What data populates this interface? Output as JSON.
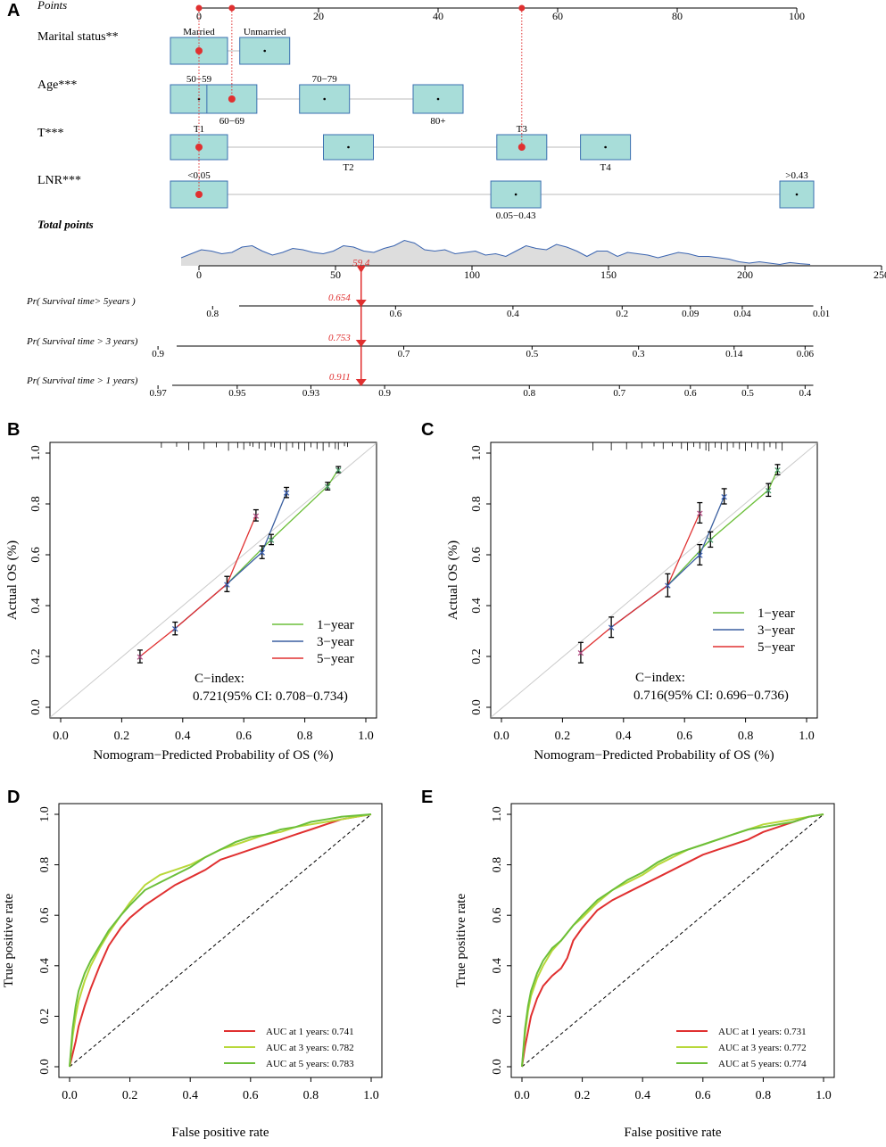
{
  "colors": {
    "box_fill": "#a8ddd9",
    "box_stroke": "#3a6fb0",
    "red": "#e03030",
    "green": "#6cbf3a",
    "yellowgreen": "#b8d83a",
    "blue": "#3a5fa0",
    "density": "#3a64b0",
    "grey": "#bbbbbb"
  },
  "chart_data": [
    {
      "panel": "A",
      "type": "nomogram",
      "points_label": "Points",
      "points_ticks": [
        0,
        20,
        40,
        60,
        80,
        100
      ],
      "variables": [
        {
          "name": "Marital status**",
          "levels": [
            {
              "label": "Married",
              "points": 0,
              "selected": true
            },
            {
              "label": "Unmarried",
              "points": 11
            }
          ]
        },
        {
          "name": "Age***",
          "levels": [
            {
              "label": "50−59",
              "points": 0
            },
            {
              "label": "60−69",
              "points": 5.5,
              "selected": true
            },
            {
              "label": "70−79",
              "points": 21
            },
            {
              "label": "80+",
              "points": 40
            }
          ]
        },
        {
          "name": "T***",
          "levels": [
            {
              "label": "T1",
              "points": 0,
              "selected": true
            },
            {
              "label": "T2",
              "points": 25
            },
            {
              "label": "T3",
              "points": 54,
              "selected_alt": true
            },
            {
              "label": "T4",
              "points": 68
            }
          ]
        },
        {
          "name": "LNR***",
          "levels": [
            {
              "label": "<0.05",
              "points": 0,
              "selected": true
            },
            {
              "label": "0.05−0.43",
              "points": 53
            },
            {
              "label": ">0.43",
              "points": 100
            }
          ]
        }
      ],
      "total_points_label": "Total points",
      "total_ticks": [
        0,
        50,
        100,
        150,
        200,
        250
      ],
      "total_value": "59.4",
      "total_value_num": 59.4,
      "density_y": [
        0.3,
        0.45,
        0.6,
        0.55,
        0.45,
        0.5,
        0.7,
        0.75,
        0.55,
        0.4,
        0.5,
        0.65,
        0.6,
        0.5,
        0.45,
        0.55,
        0.75,
        0.7,
        0.55,
        0.5,
        0.65,
        0.75,
        0.95,
        0.85,
        0.6,
        0.55,
        0.6,
        0.45,
        0.5,
        0.55,
        0.4,
        0.45,
        0.35,
        0.55,
        0.75,
        0.65,
        0.6,
        0.8,
        0.7,
        0.55,
        0.35,
        0.55,
        0.55,
        0.35,
        0.5,
        0.45,
        0.4,
        0.3,
        0.4,
        0.5,
        0.45,
        0.35,
        0.35,
        0.3,
        0.25,
        0.15,
        0.1,
        0.15,
        0.1,
        0.05,
        0.12,
        0.08,
        0.05
      ],
      "survival_axes": [
        {
          "label": "Pr( Survival time> 5years )",
          "prob": "0.654",
          "ticks": [
            {
              "label": "0.8",
              "pos": 5
            },
            {
              "label": "0.6",
              "pos": 72
            },
            {
              "label": "0.4",
              "pos": 115
            },
            {
              "label": "0.2",
              "pos": 155
            },
            {
              "label": "0.09",
              "pos": 180
            },
            {
              "label": "0.04",
              "pos": 199
            },
            {
              "label": "0.01",
              "pos": 228
            }
          ]
        },
        {
          "label": "Pr( Survival time > 3 years)",
          "prob": "0.753",
          "ticks": [
            {
              "label": "0.9",
              "pos": -15
            },
            {
              "label": "0.7",
              "pos": 75
            },
            {
              "label": "0.5",
              "pos": 122
            },
            {
              "label": "0.3",
              "pos": 161
            },
            {
              "label": "0.14",
              "pos": 196
            },
            {
              "label": "0.06",
              "pos": 222
            }
          ]
        },
        {
          "label": "Pr( Survival time > 1 years)",
          "prob": "0.911",
          "ticks": [
            {
              "label": "0.97",
              "pos": -15
            },
            {
              "label": "0.95",
              "pos": 14
            },
            {
              "label": "0.93",
              "pos": 41
            },
            {
              "label": "0.9",
              "pos": 68
            },
            {
              "label": "0.8",
              "pos": 121
            },
            {
              "label": "0.7",
              "pos": 154
            },
            {
              "label": "0.6",
              "pos": 180
            },
            {
              "label": "0.5",
              "pos": 201
            },
            {
              "label": "0.4",
              "pos": 222
            }
          ]
        }
      ]
    },
    {
      "panel": "B",
      "type": "calibration",
      "xlabel": "Nomogram−Predicted Probability of OS (%)",
      "ylabel": "Actual  OS (%)",
      "xlim": [
        0,
        1
      ],
      "ylim": [
        0,
        1
      ],
      "xticks": [
        "0.0",
        "0.2",
        "0.4",
        "0.6",
        "0.8",
        "1.0"
      ],
      "yticks": [
        "0.0",
        "0.2",
        "0.4",
        "0.6",
        "0.8",
        "1.0"
      ],
      "legend": [
        "1−year",
        "3−year",
        "5−year"
      ],
      "cindex_label": "C−index:",
      "cindex_value": "0.721(95% CI: 0.708−0.734)",
      "rug": [
        0.33,
        0.38,
        0.42,
        0.47,
        0.51,
        0.55,
        0.58,
        0.6,
        0.62,
        0.63,
        0.65,
        0.67,
        0.69,
        0.7,
        0.72,
        0.74,
        0.76,
        0.78,
        0.8,
        0.82,
        0.84,
        0.86,
        0.88,
        0.9,
        0.91,
        0.93,
        0.94
      ],
      "series": [
        {
          "name": "1−year",
          "color": "green",
          "points": [
            [
              0.69,
              0.66,
              0.02
            ],
            [
              0.875,
              0.87,
              0.015
            ],
            [
              0.91,
              0.935,
              0.012
            ]
          ]
        },
        {
          "name": "3−year",
          "color": "blue",
          "points": [
            [
              0.375,
              0.31,
              0.025
            ],
            [
              0.545,
              0.485,
              0.03
            ],
            [
              0.66,
              0.61,
              0.025
            ],
            [
              0.74,
              0.845,
              0.02
            ]
          ]
        },
        {
          "name": "5−year",
          "color": "red",
          "points": [
            [
              0.26,
              0.2,
              0.025
            ],
            [
              0.64,
              0.755,
              0.022
            ]
          ]
        }
      ],
      "red_line": [
        [
          0.26,
          0.2
        ],
        [
          0.375,
          0.31
        ],
        [
          0.545,
          0.485
        ],
        [
          0.64,
          0.755
        ]
      ],
      "blue_line": [
        [
          0.375,
          0.31
        ],
        [
          0.545,
          0.485
        ],
        [
          0.66,
          0.61
        ],
        [
          0.74,
          0.845
        ]
      ],
      "green_line": [
        [
          0.545,
          0.485
        ],
        [
          0.69,
          0.66
        ],
        [
          0.875,
          0.87
        ],
        [
          0.91,
          0.935
        ]
      ]
    },
    {
      "panel": "C",
      "type": "calibration",
      "xlabel": "Nomogram−Predicted Probability of OS (%)",
      "ylabel": "Actual  OS (%)",
      "xlim": [
        0,
        1
      ],
      "ylim": [
        0,
        1
      ],
      "xticks": [
        "0.0",
        "0.2",
        "0.4",
        "0.6",
        "0.8",
        "1.0"
      ],
      "yticks": [
        "0.0",
        "0.2",
        "0.4",
        "0.6",
        "0.8",
        "1.0"
      ],
      "legend": [
        "1−year",
        "3−year",
        "5−year"
      ],
      "cindex_label": "C−index:",
      "cindex_value": "0.716(95% CI: 0.696−0.736)",
      "rug": [
        0.3,
        0.36,
        0.41,
        0.46,
        0.5,
        0.53,
        0.56,
        0.59,
        0.61,
        0.63,
        0.65,
        0.67,
        0.68,
        0.7,
        0.72,
        0.74,
        0.76,
        0.78,
        0.8,
        0.82,
        0.84,
        0.86,
        0.88,
        0.9,
        0.92
      ],
      "series": [
        {
          "name": "1−year",
          "color": "green",
          "points": [
            [
              0.685,
              0.66,
              0.03
            ],
            [
              0.875,
              0.855,
              0.025
            ],
            [
              0.905,
              0.935,
              0.02
            ]
          ]
        },
        {
          "name": "3−year",
          "color": "blue",
          "points": [
            [
              0.36,
              0.315,
              0.04
            ],
            [
              0.545,
              0.48,
              0.045
            ],
            [
              0.65,
              0.6,
              0.04
            ],
            [
              0.73,
              0.83,
              0.03
            ]
          ]
        },
        {
          "name": "5−year",
          "color": "red",
          "points": [
            [
              0.26,
              0.215,
              0.04
            ],
            [
              0.65,
              0.765,
              0.04
            ]
          ]
        }
      ],
      "red_line": [
        [
          0.26,
          0.215
        ],
        [
          0.36,
          0.315
        ],
        [
          0.545,
          0.48
        ],
        [
          0.65,
          0.765
        ]
      ],
      "blue_line": [
        [
          0.36,
          0.315
        ],
        [
          0.545,
          0.48
        ],
        [
          0.65,
          0.6
        ],
        [
          0.73,
          0.83
        ]
      ],
      "green_line": [
        [
          0.545,
          0.48
        ],
        [
          0.685,
          0.66
        ],
        [
          0.875,
          0.855
        ],
        [
          0.905,
          0.935
        ]
      ]
    },
    {
      "panel": "D",
      "type": "line",
      "xlabel": "False positive rate",
      "ylabel": "True positive rate",
      "xlim": [
        0,
        1
      ],
      "ylim": [
        0,
        1
      ],
      "xticks": [
        "0.0",
        "0.2",
        "0.4",
        "0.6",
        "0.8",
        "1.0"
      ],
      "yticks": [
        "0.0",
        "0.2",
        "0.4",
        "0.6",
        "0.8",
        "1.0"
      ],
      "series": [
        {
          "name": "AUC at 1 years: 0.741",
          "color": "red",
          "x": [
            0,
            0.01,
            0.02,
            0.03,
            0.05,
            0.07,
            0.1,
            0.13,
            0.17,
            0.2,
            0.25,
            0.3,
            0.35,
            0.4,
            0.45,
            0.5,
            0.55,
            0.6,
            0.65,
            0.7,
            0.75,
            0.8,
            0.85,
            0.9,
            0.95,
            1.0
          ],
          "y": [
            0,
            0.05,
            0.1,
            0.16,
            0.24,
            0.31,
            0.4,
            0.48,
            0.55,
            0.59,
            0.64,
            0.68,
            0.72,
            0.75,
            0.78,
            0.82,
            0.84,
            0.86,
            0.88,
            0.9,
            0.92,
            0.94,
            0.96,
            0.98,
            0.99,
            1.0
          ]
        },
        {
          "name": "AUC at 3 years: 0.782",
          "color": "yellowgreen",
          "x": [
            0,
            0.01,
            0.02,
            0.03,
            0.05,
            0.07,
            0.1,
            0.13,
            0.17,
            0.2,
            0.25,
            0.3,
            0.35,
            0.4,
            0.45,
            0.5,
            0.55,
            0.6,
            0.65,
            0.7,
            0.75,
            0.8,
            0.85,
            0.9,
            0.95,
            1.0
          ],
          "y": [
            0,
            0.12,
            0.2,
            0.26,
            0.34,
            0.4,
            0.47,
            0.53,
            0.6,
            0.65,
            0.72,
            0.76,
            0.78,
            0.8,
            0.83,
            0.86,
            0.88,
            0.9,
            0.92,
            0.93,
            0.95,
            0.96,
            0.97,
            0.98,
            0.99,
            1.0
          ]
        },
        {
          "name": "AUC at 5 years: 0.783",
          "color": "green",
          "x": [
            0,
            0.01,
            0.02,
            0.03,
            0.05,
            0.07,
            0.1,
            0.13,
            0.17,
            0.2,
            0.25,
            0.3,
            0.35,
            0.4,
            0.45,
            0.5,
            0.55,
            0.6,
            0.65,
            0.7,
            0.75,
            0.8,
            0.85,
            0.9,
            0.95,
            1.0
          ],
          "y": [
            0,
            0.15,
            0.24,
            0.3,
            0.37,
            0.42,
            0.48,
            0.54,
            0.6,
            0.64,
            0.7,
            0.73,
            0.76,
            0.79,
            0.83,
            0.86,
            0.89,
            0.91,
            0.92,
            0.94,
            0.95,
            0.97,
            0.98,
            0.99,
            0.995,
            1.0
          ]
        }
      ]
    },
    {
      "panel": "E",
      "type": "line",
      "xlabel": "False positive rate",
      "ylabel": "True positive rate",
      "xlim": [
        0,
        1
      ],
      "ylim": [
        0,
        1
      ],
      "xticks": [
        "0.0",
        "0.2",
        "0.4",
        "0.6",
        "0.8",
        "1.0"
      ],
      "yticks": [
        "0.0",
        "0.2",
        "0.4",
        "0.6",
        "0.8",
        "1.0"
      ],
      "series": [
        {
          "name": "AUC at 1 years: 0.731",
          "color": "red",
          "x": [
            0,
            0.01,
            0.02,
            0.03,
            0.05,
            0.07,
            0.1,
            0.13,
            0.15,
            0.17,
            0.2,
            0.25,
            0.3,
            0.35,
            0.4,
            0.45,
            0.5,
            0.55,
            0.6,
            0.65,
            0.7,
            0.75,
            0.8,
            0.85,
            0.9,
            0.95,
            1.0
          ],
          "y": [
            0,
            0.08,
            0.14,
            0.2,
            0.27,
            0.32,
            0.36,
            0.39,
            0.43,
            0.5,
            0.55,
            0.62,
            0.66,
            0.69,
            0.72,
            0.75,
            0.78,
            0.81,
            0.84,
            0.86,
            0.88,
            0.9,
            0.93,
            0.95,
            0.97,
            0.99,
            1.0
          ]
        },
        {
          "name": "AUC at 3 years: 0.772",
          "color": "yellowgreen",
          "x": [
            0,
            0.01,
            0.02,
            0.03,
            0.05,
            0.07,
            0.1,
            0.13,
            0.15,
            0.17,
            0.2,
            0.25,
            0.3,
            0.35,
            0.4,
            0.45,
            0.5,
            0.55,
            0.6,
            0.65,
            0.7,
            0.75,
            0.8,
            0.85,
            0.9,
            0.95,
            1.0
          ],
          "y": [
            0,
            0.13,
            0.22,
            0.28,
            0.35,
            0.4,
            0.46,
            0.5,
            0.53,
            0.56,
            0.59,
            0.65,
            0.7,
            0.73,
            0.76,
            0.8,
            0.83,
            0.86,
            0.88,
            0.9,
            0.92,
            0.94,
            0.96,
            0.97,
            0.98,
            0.99,
            1.0
          ]
        },
        {
          "name": "AUC at 5 years: 0.774",
          "color": "green",
          "x": [
            0,
            0.01,
            0.02,
            0.03,
            0.05,
            0.07,
            0.1,
            0.13,
            0.15,
            0.17,
            0.2,
            0.25,
            0.3,
            0.35,
            0.4,
            0.45,
            0.5,
            0.55,
            0.6,
            0.65,
            0.7,
            0.75,
            0.8,
            0.85,
            0.9,
            0.95,
            1.0
          ],
          "y": [
            0,
            0.15,
            0.24,
            0.3,
            0.37,
            0.42,
            0.47,
            0.5,
            0.53,
            0.56,
            0.6,
            0.66,
            0.7,
            0.74,
            0.77,
            0.81,
            0.84,
            0.86,
            0.88,
            0.9,
            0.92,
            0.94,
            0.95,
            0.96,
            0.97,
            0.99,
            1.0
          ]
        }
      ]
    }
  ]
}
